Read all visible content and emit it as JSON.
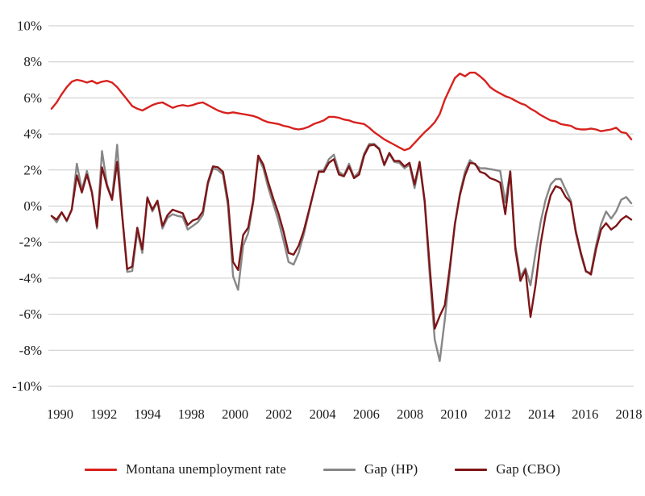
{
  "chart_data": {
    "type": "line",
    "title": "",
    "xlabel": "",
    "ylabel": "",
    "x_tick_labels": [
      "1990",
      "1992",
      "1994",
      "1998",
      "2000",
      "2002",
      "2004",
      "2006",
      "2008",
      "2010",
      "2012",
      "2014",
      "2016",
      "2018"
    ],
    "y_tick_labels": [
      "10%",
      "8%",
      "6%",
      "4%",
      "2%",
      "0%",
      "-2%",
      "-4%",
      "-6%",
      "-8%",
      "-10%"
    ],
    "ylim": [
      -10,
      10
    ],
    "y_tick_step": 2,
    "grid": "horizontal",
    "legend_position": "bottom",
    "x_unit": "quarterly 1990-2018",
    "gridline_color": "#c9c9c9",
    "series": [
      {
        "name": "Montana unemployment rate",
        "color": "#d7211e",
        "values": [
          5.4,
          5.75,
          6.2,
          6.6,
          6.9,
          7.0,
          6.95,
          6.85,
          6.95,
          6.8,
          6.9,
          6.95,
          6.85,
          6.6,
          6.25,
          5.9,
          5.55,
          5.4,
          5.3,
          5.45,
          5.6,
          5.7,
          5.75,
          5.6,
          5.45,
          5.55,
          5.6,
          5.55,
          5.6,
          5.7,
          5.75,
          5.6,
          5.45,
          5.3,
          5.2,
          5.15,
          5.2,
          5.15,
          5.1,
          5.05,
          5.0,
          4.9,
          4.75,
          4.65,
          4.6,
          4.55,
          4.45,
          4.4,
          4.3,
          4.25,
          4.3,
          4.4,
          4.55,
          4.65,
          4.75,
          4.95,
          4.95,
          4.9,
          4.8,
          4.75,
          4.65,
          4.6,
          4.55,
          4.35,
          4.1,
          3.9,
          3.7,
          3.55,
          3.4,
          3.25,
          3.1,
          3.2,
          3.5,
          3.8,
          4.1,
          4.35,
          4.65,
          5.1,
          5.9,
          6.5,
          7.1,
          7.35,
          7.2,
          7.4,
          7.4,
          7.2,
          6.95,
          6.6,
          6.4,
          6.25,
          6.1,
          6.0,
          5.85,
          5.7,
          5.6,
          5.4,
          5.25,
          5.05,
          4.9,
          4.75,
          4.7,
          4.55,
          4.5,
          4.45,
          4.3,
          4.25,
          4.25,
          4.3,
          4.25,
          4.15,
          4.2,
          4.25,
          4.35,
          4.1,
          4.05,
          3.7
        ]
      },
      {
        "name": "Gap (HP)",
        "color": "#878787",
        "values": [
          -0.55,
          -0.9,
          -0.35,
          -0.85,
          -0.2,
          2.35,
          0.9,
          1.95,
          0.8,
          -1.25,
          3.05,
          1.2,
          0.4,
          3.4,
          -0.5,
          -3.65,
          -3.6,
          -1.4,
          -2.6,
          0.5,
          -0.3,
          0.25,
          -1.25,
          -0.65,
          -0.45,
          -0.55,
          -0.6,
          -1.3,
          -1.1,
          -0.9,
          -0.5,
          1.2,
          2.1,
          2.0,
          1.75,
          0.0,
          -3.9,
          -4.65,
          -2.2,
          -1.5,
          0.2,
          2.7,
          2.1,
          1.0,
          0.1,
          -0.8,
          -1.9,
          -3.1,
          -3.25,
          -2.6,
          -1.6,
          -0.4,
          0.8,
          1.95,
          2.0,
          2.6,
          2.85,
          1.9,
          1.7,
          2.35,
          1.6,
          1.9,
          2.9,
          3.45,
          3.45,
          3.2,
          2.25,
          2.9,
          2.45,
          2.4,
          2.1,
          2.3,
          1.0,
          2.35,
          0.2,
          -3.8,
          -7.4,
          -8.6,
          -6.3,
          -3.6,
          -1.0,
          0.7,
          1.9,
          2.55,
          2.3,
          2.1,
          2.1,
          2.05,
          2.0,
          1.95,
          0.2,
          1.95,
          -2.2,
          -3.9,
          -3.45,
          -4.4,
          -2.6,
          -0.9,
          0.35,
          1.2,
          1.5,
          1.5,
          0.9,
          0.3,
          -1.5,
          -2.7,
          -3.65,
          -3.7,
          -2.2,
          -1.0,
          -0.3,
          -0.7,
          -0.3,
          0.35,
          0.5,
          0.15
        ]
      },
      {
        "name": "Gap (CBO)",
        "color": "#7e1517",
        "values": [
          -0.55,
          -0.75,
          -0.35,
          -0.8,
          -0.2,
          1.7,
          0.75,
          1.75,
          0.75,
          -1.15,
          2.15,
          1.1,
          0.35,
          2.45,
          -0.5,
          -3.5,
          -3.35,
          -1.2,
          -2.4,
          0.45,
          -0.2,
          0.3,
          -1.1,
          -0.5,
          -0.2,
          -0.3,
          -0.4,
          -1.05,
          -0.8,
          -0.7,
          -0.3,
          1.3,
          2.2,
          2.15,
          1.9,
          0.3,
          -3.1,
          -3.55,
          -1.6,
          -1.2,
          0.3,
          2.8,
          2.3,
          1.3,
          0.4,
          -0.4,
          -1.4,
          -2.6,
          -2.7,
          -2.2,
          -1.4,
          -0.3,
          0.8,
          1.9,
          1.9,
          2.4,
          2.6,
          1.75,
          1.65,
          2.2,
          1.55,
          1.75,
          2.8,
          3.35,
          3.4,
          3.15,
          2.3,
          2.95,
          2.5,
          2.5,
          2.2,
          2.4,
          1.2,
          2.45,
          0.3,
          -3.3,
          -6.8,
          -6.1,
          -5.5,
          -3.4,
          -1.0,
          0.6,
          1.7,
          2.4,
          2.35,
          1.9,
          1.8,
          1.55,
          1.45,
          1.3,
          -0.45,
          1.9,
          -2.4,
          -4.15,
          -3.55,
          -6.15,
          -4.4,
          -2.1,
          -0.5,
          0.6,
          1.1,
          1.0,
          0.5,
          0.2,
          -1.4,
          -2.6,
          -3.6,
          -3.8,
          -2.4,
          -1.3,
          -0.95,
          -1.3,
          -1.1,
          -0.75,
          -0.55,
          -0.75
        ]
      }
    ]
  },
  "legend": {
    "items": [
      {
        "label": "Montana unemployment rate",
        "color": "#d7211e"
      },
      {
        "label": "Gap (HP)",
        "color": "#878787"
      },
      {
        "label": "Gap (CBO)",
        "color": "#7e1517"
      }
    ]
  }
}
